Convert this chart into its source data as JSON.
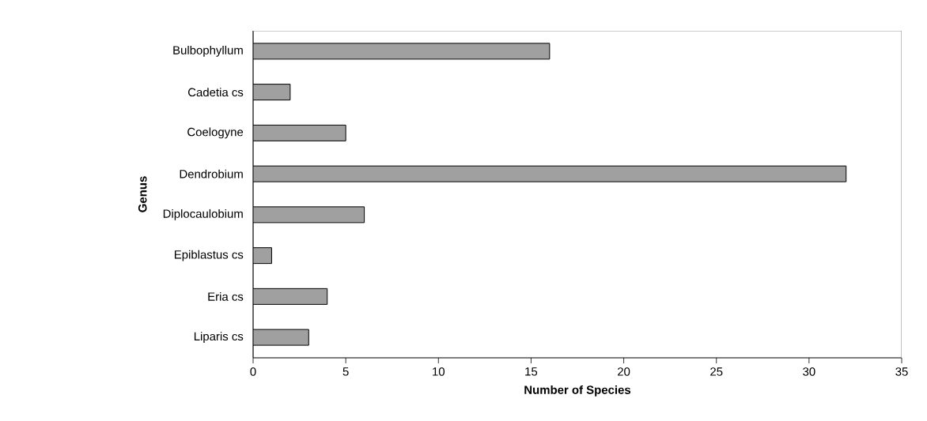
{
  "chart_data": {
    "type": "bar",
    "orientation": "horizontal",
    "xlabel": "Number of Species",
    "ylabel": "Genus",
    "categories": [
      "Bulbophyllum",
      "Cadetia cs",
      "Coelogyne",
      "Dendrobium",
      "Diplocaulobium",
      "Epiblastus cs",
      "Eria cs",
      "Liparis cs"
    ],
    "values": [
      16,
      2,
      5,
      32,
      6,
      1,
      4,
      3
    ],
    "color": "#a0a0a0",
    "xlim": [
      0,
      35
    ],
    "xticks": [
      0,
      5,
      10,
      15,
      20,
      25,
      30,
      35
    ],
    "grid": false
  }
}
